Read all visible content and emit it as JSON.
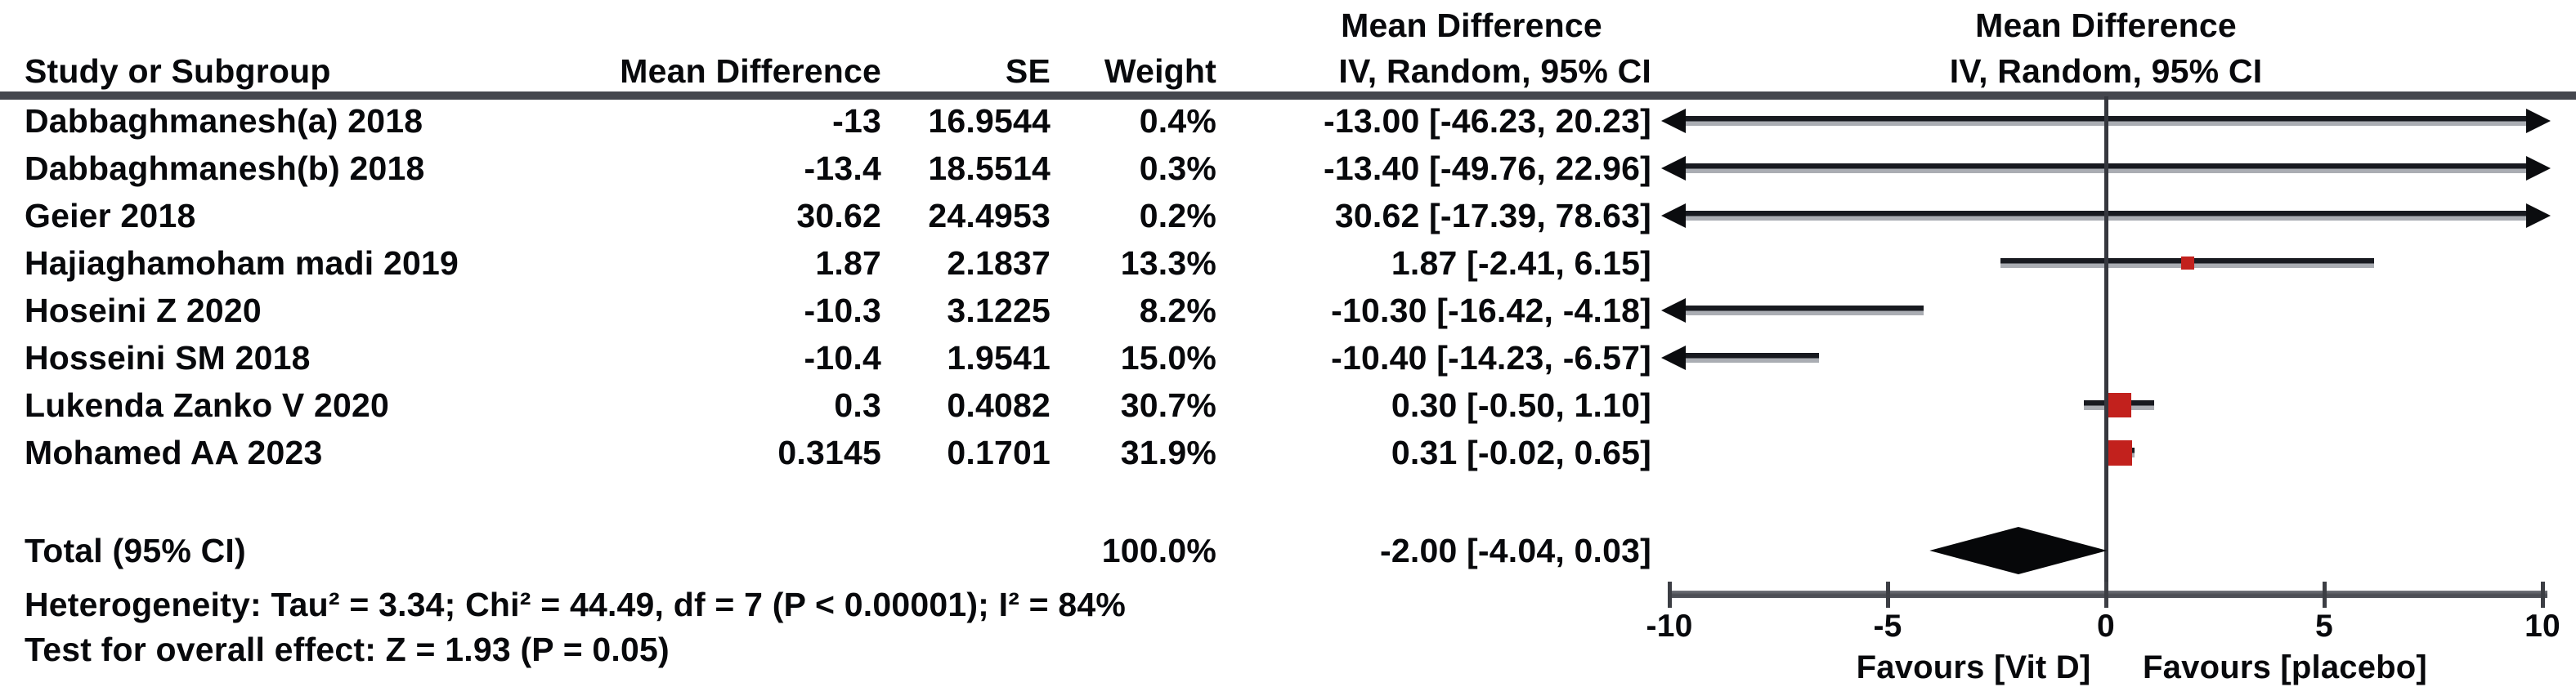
{
  "header": {
    "col_study": "Study or Subgroup",
    "col_md": "Mean Difference",
    "col_se": "SE",
    "col_weight": "Weight",
    "col_ci_line1": "Mean Difference",
    "col_ci_line2": "IV, Random, 95% CI",
    "plot_line1": "Mean Difference",
    "plot_line2": "IV, Random, 95% CI"
  },
  "colors": {
    "marker_red": "#c2211d",
    "line_dark": "#181a20",
    "diamond_black": "#060709",
    "rule_gray": "#45474e"
  },
  "chart_data": {
    "type": "forest",
    "effect_measure": "Mean Difference, IV, Random, 95% CI",
    "x_axis": {
      "min": -10,
      "max": 10,
      "ticks": [
        -10,
        -5,
        0,
        5,
        10
      ],
      "label_left": "Favours [Vit D]",
      "label_right": "Favours [placebo]"
    },
    "studies": [
      {
        "name": "Dabbaghmanesh(a) 2018",
        "md": "-13",
        "se": "16.9544",
        "weight": "0.4%",
        "ci_text": "-13.00 [-46.23, 20.23]",
        "mean": -13.0,
        "low": -46.23,
        "high": 20.23,
        "weight_pct": 0.4
      },
      {
        "name": "Dabbaghmanesh(b) 2018",
        "md": "-13.4",
        "se": "18.5514",
        "weight": "0.3%",
        "ci_text": "-13.40 [-49.76, 22.96]",
        "mean": -13.4,
        "low": -49.76,
        "high": 22.96,
        "weight_pct": 0.3
      },
      {
        "name": "Geier 2018",
        "md": "30.62",
        "se": "24.4953",
        "weight": "0.2%",
        "ci_text": "30.62 [-17.39, 78.63]",
        "mean": 30.62,
        "low": -17.39,
        "high": 78.63,
        "weight_pct": 0.2
      },
      {
        "name": "Hajiaghamoham madi 2019",
        "md": "1.87",
        "se": "2.1837",
        "weight": "13.3%",
        "ci_text": "1.87 [-2.41, 6.15]",
        "mean": 1.87,
        "low": -2.41,
        "high": 6.15,
        "weight_pct": 13.3
      },
      {
        "name": "Hoseini Z 2020",
        "md": "-10.3",
        "se": "3.1225",
        "weight": "8.2%",
        "ci_text": "-10.30 [-16.42, -4.18]",
        "mean": -10.3,
        "low": -16.42,
        "high": -4.18,
        "weight_pct": 8.2
      },
      {
        "name": "Hosseini SM 2018",
        "md": "-10.4",
        "se": "1.9541",
        "weight": "15.0%",
        "ci_text": "-10.40 [-14.23, -6.57]",
        "mean": -10.4,
        "low": -14.23,
        "high": -6.57,
        "weight_pct": 15.0
      },
      {
        "name": "Lukenda Zanko V 2020",
        "md": "0.3",
        "se": "0.4082",
        "weight": "30.7%",
        "ci_text": "0.30 [-0.50, 1.10]",
        "mean": 0.3,
        "low": -0.5,
        "high": 1.1,
        "weight_pct": 30.7
      },
      {
        "name": "Mohamed AA 2023",
        "md": "0.3145",
        "se": "0.1701",
        "weight": "31.9%",
        "ci_text": "0.31 [-0.02, 0.65]",
        "mean": 0.3145,
        "low": -0.02,
        "high": 0.65,
        "weight_pct": 31.9
      }
    ],
    "total": {
      "label": "Total (95% CI)",
      "weight": "100.0%",
      "ci_text": "-2.00 [-4.04, 0.03]",
      "mean": -2.0,
      "low": -4.04,
      "high": 0.03
    },
    "heterogeneity": "Heterogeneity: Tau² = 3.34; Chi² = 44.49, df = 7 (P < 0.00001); I² = 84%",
    "overall_effect": "Test for overall effect: Z = 1.93 (P = 0.05)"
  }
}
